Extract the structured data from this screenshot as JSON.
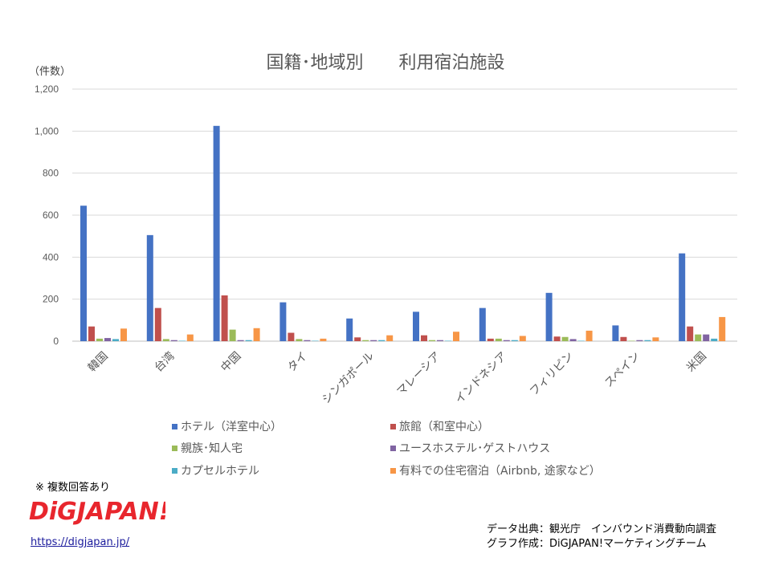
{
  "chart_data": {
    "type": "bar",
    "title": "国籍･地域別　　利用宿泊施設",
    "ylabel": "（件数）",
    "ylim": [
      0,
      1200
    ],
    "yticks": [
      "0",
      "200",
      "400",
      "600",
      "800",
      "1,000",
      "1,200"
    ],
    "yticks_values": [
      0,
      200,
      400,
      600,
      800,
      1000,
      1200
    ],
    "grid": true,
    "legend_position": "bottom",
    "categories": [
      "韓国",
      "台湾",
      "中国",
      "タイ",
      "シンガポール",
      "マレーシア",
      "インドネシア",
      "フィリピン",
      "スペイン",
      "米国"
    ],
    "series": [
      {
        "name": "ホテル（洋室中心）",
        "color": "#4472C4",
        "values": [
          645,
          505,
          1025,
          185,
          108,
          140,
          158,
          230,
          75,
          418
        ]
      },
      {
        "name": "旅館（和室中心）",
        "color": "#C0504D",
        "values": [
          70,
          158,
          218,
          40,
          18,
          28,
          12,
          22,
          20,
          70
        ]
      },
      {
        "name": "親族･知人宅",
        "color": "#9BBB59",
        "values": [
          12,
          10,
          55,
          10,
          5,
          5,
          12,
          20,
          2,
          32
        ]
      },
      {
        "name": "ユースホステル･ゲストハウス",
        "color": "#8064A2",
        "values": [
          15,
          5,
          5,
          5,
          5,
          5,
          5,
          10,
          5,
          32
        ]
      },
      {
        "name": "カプセルホテル",
        "color": "#4BACC6",
        "values": [
          10,
          2,
          5,
          2,
          5,
          2,
          5,
          2,
          5,
          12
        ]
      },
      {
        "name": "有料での住宅宿泊（Airbnb, 途家など）",
        "color": "#F79646",
        "values": [
          60,
          32,
          62,
          12,
          28,
          45,
          25,
          50,
          18,
          115
        ]
      }
    ]
  },
  "note": "※ 複数回答あり",
  "logo": {
    "text": "DiGJAPAN!",
    "color": "#E8262D"
  },
  "site_link": "https://digjapan.jp/",
  "source": {
    "line1": "データ出典：観光庁　インバウンド消費動向調査",
    "line2": "グラフ作成：DiGJAPAN!マーケティングチーム"
  }
}
